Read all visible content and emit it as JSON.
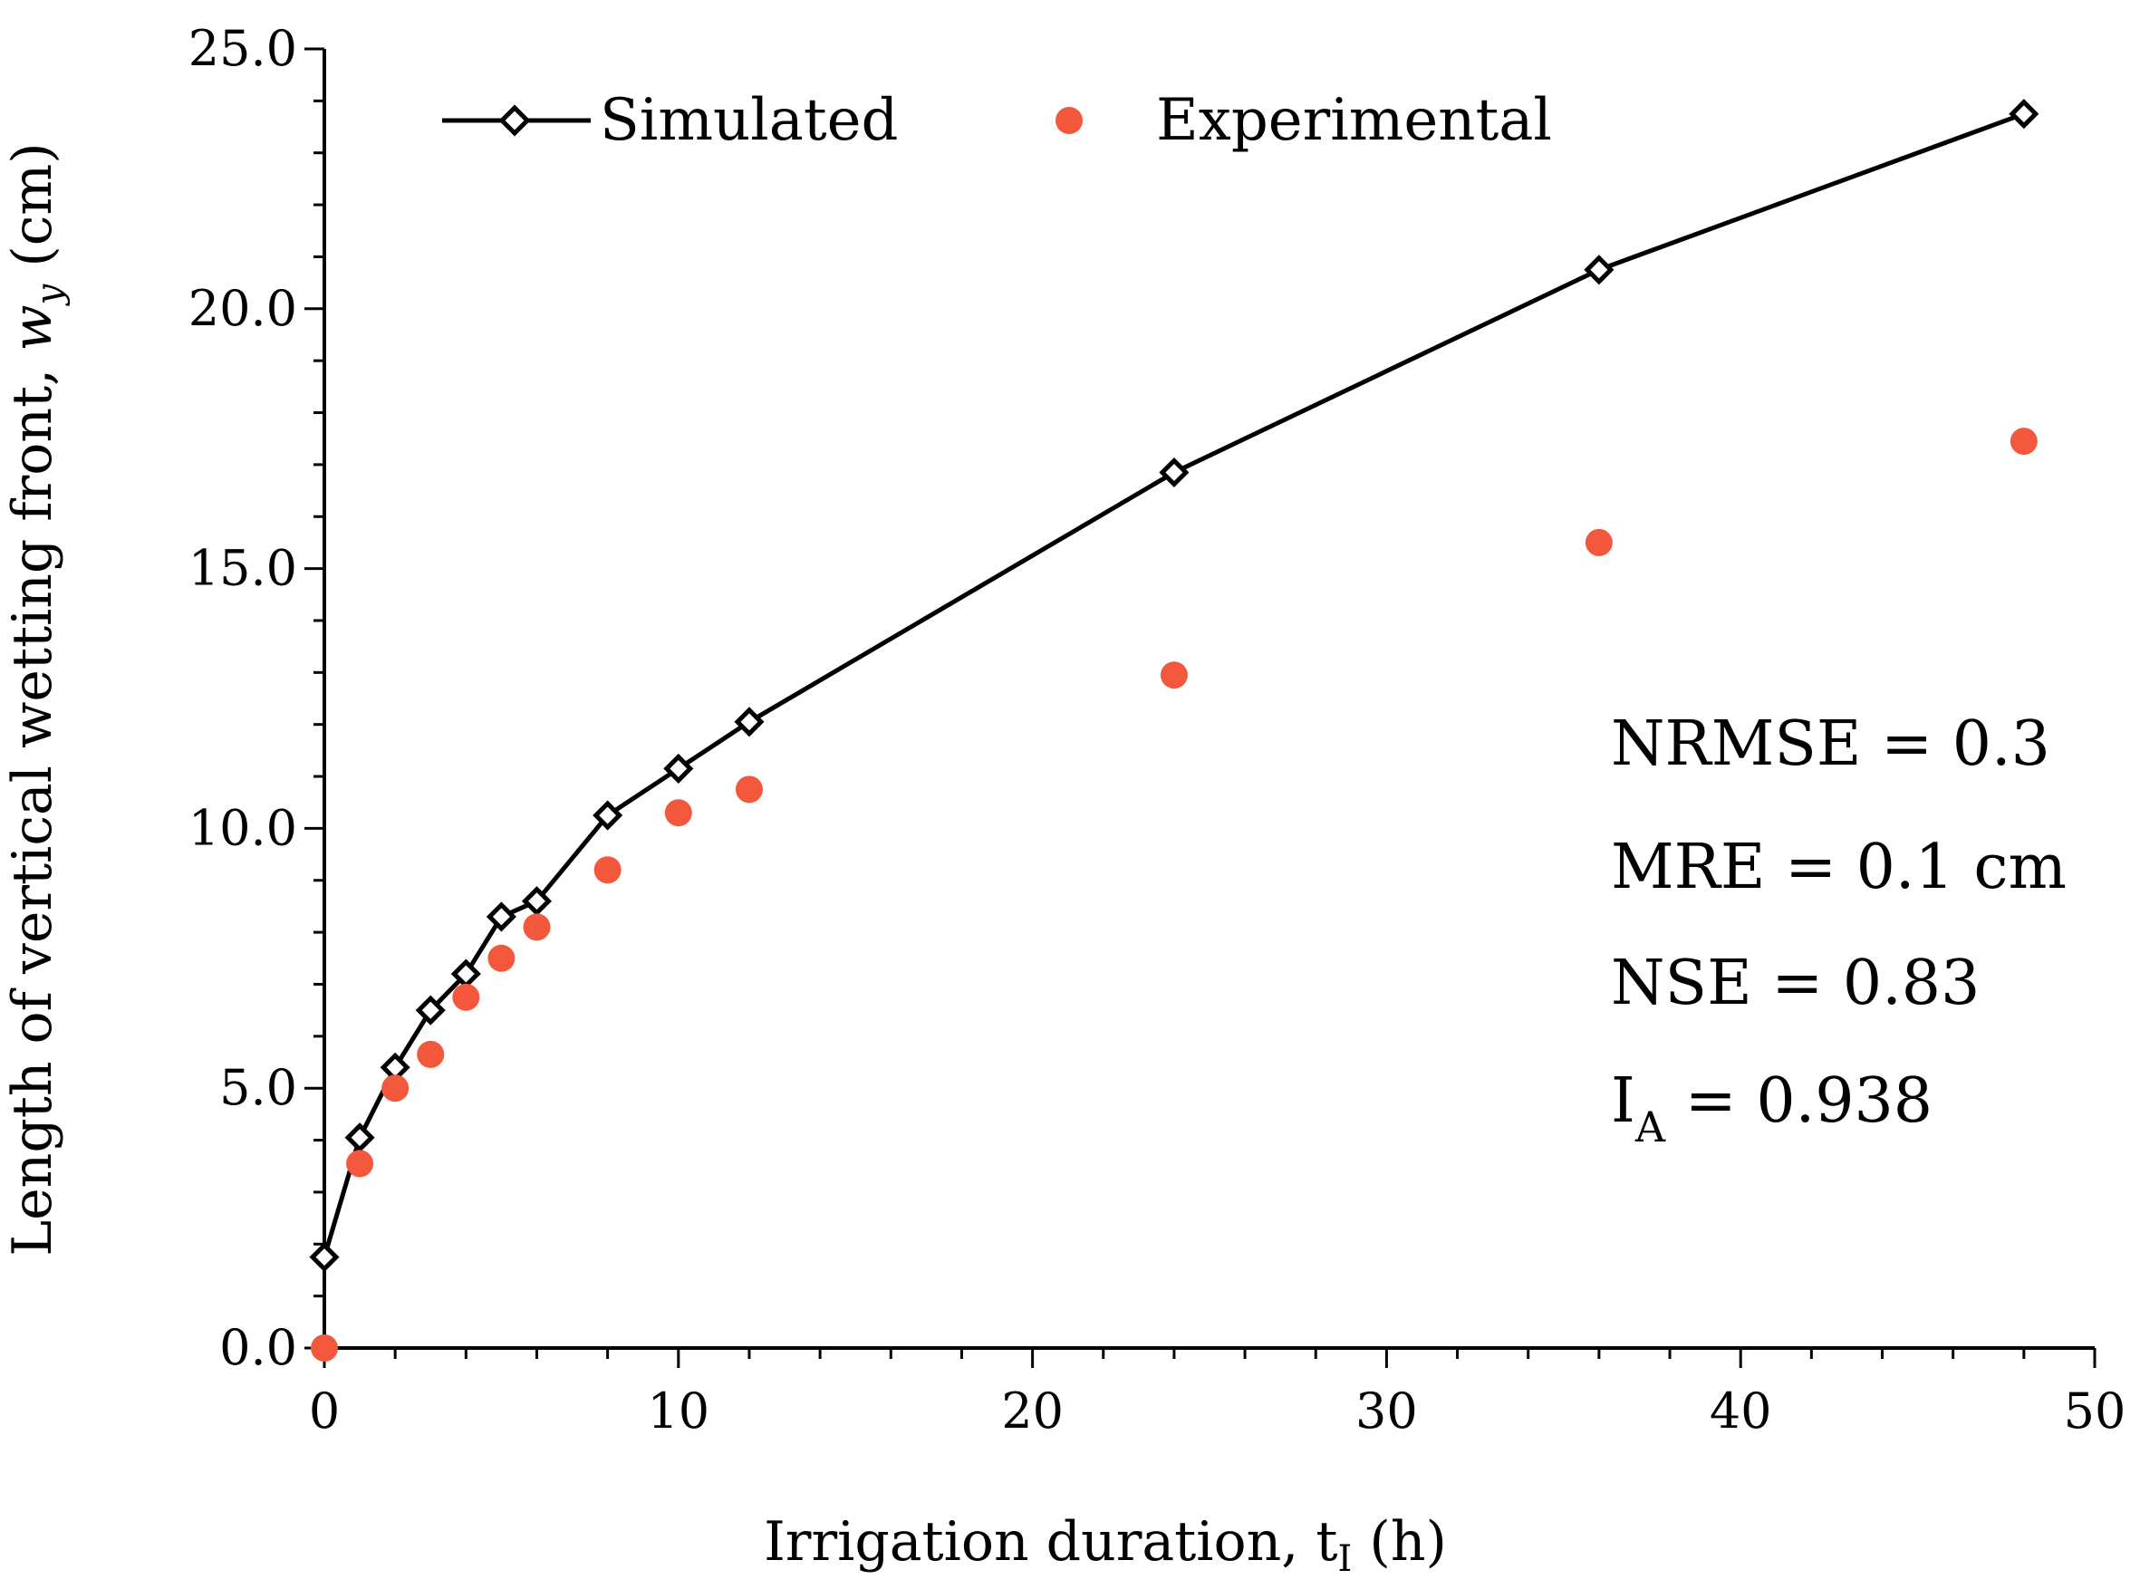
{
  "chart_data": {
    "type": "line",
    "title": "",
    "xlabel": "Irrigation duration, t",
    "xlabel_sub": "I",
    "xlabel_unit": "(h)",
    "ylabel": "Length of vertical wetting front, ",
    "ylabel_var": "w",
    "ylabel_sub": "y",
    "ylabel_unit": "(cm)",
    "xlim": [
      0,
      50
    ],
    "ylim": [
      0,
      25
    ],
    "x_ticks": [
      0,
      10,
      20,
      30,
      40,
      50
    ],
    "x_tick_labels": [
      "0",
      "10",
      "20",
      "30",
      "40",
      "50"
    ],
    "y_ticks": [
      0,
      5,
      10,
      15,
      20,
      25
    ],
    "y_tick_labels": [
      "0.0",
      "5.0",
      "10.0",
      "15.0",
      "20.0",
      "25.0"
    ],
    "x_minor_step": 2,
    "y_minor_step": 1,
    "grid": false,
    "legend_position": "top",
    "series": [
      {
        "name": "Simulated",
        "style": "line-diamond",
        "color": "#000000",
        "x": [
          0,
          1,
          2,
          3,
          4,
          5,
          6,
          8,
          10,
          12,
          24,
          36,
          48
        ],
        "y": [
          1.75,
          4.05,
          5.4,
          6.5,
          7.2,
          8.3,
          8.6,
          10.25,
          11.15,
          12.05,
          16.85,
          20.75,
          23.75
        ]
      },
      {
        "name": "Experimental",
        "style": "scatter",
        "color": "#f4583c",
        "x": [
          0,
          1,
          2,
          3,
          4,
          5,
          6,
          8,
          10,
          12,
          24,
          36,
          48
        ],
        "y": [
          0,
          3.55,
          5.0,
          5.65,
          6.75,
          7.5,
          8.1,
          9.2,
          10.3,
          10.75,
          12.95,
          15.5,
          17.45
        ]
      }
    ],
    "annotations": [
      {
        "label": "NRMSE = 0.3"
      },
      {
        "label": "MRE = 0.1 cm"
      },
      {
        "label": "NSE = 0.83"
      },
      {
        "label": "I",
        "sub": "A",
        "rest": " = 0.938"
      }
    ]
  }
}
